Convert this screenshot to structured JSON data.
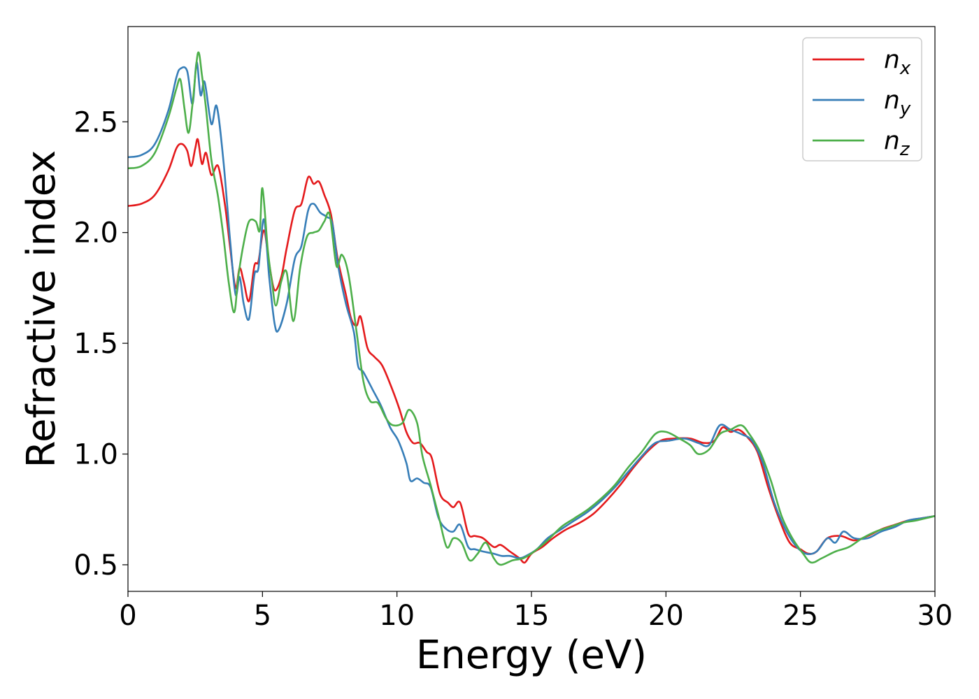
{
  "chart_data": {
    "type": "line",
    "title": "",
    "xlabel": "Energy (eV)",
    "ylabel": "Refractive index",
    "xlim": [
      0,
      30
    ],
    "ylim": [
      0.38,
      2.93
    ],
    "xticks": [
      0,
      5,
      10,
      15,
      20,
      25,
      30
    ],
    "yticks": [
      0.5,
      1.0,
      1.5,
      2.0,
      2.5
    ],
    "xtick_labels": [
      "0",
      "5",
      "10",
      "15",
      "20",
      "25",
      "30"
    ],
    "ytick_labels": [
      "0.5",
      "1.0",
      "1.5",
      "2.0",
      "2.5"
    ],
    "grid": false,
    "legend_position": "top-right",
    "series": [
      {
        "name": "n_x",
        "label_main": "n",
        "label_sub": "x",
        "color": "#e41a1c",
        "points": [
          [
            0,
            2.12
          ],
          [
            0.5,
            2.13
          ],
          [
            1.0,
            2.17
          ],
          [
            1.5,
            2.28
          ],
          [
            1.8,
            2.38
          ],
          [
            2.0,
            2.4
          ],
          [
            2.2,
            2.37
          ],
          [
            2.35,
            2.3
          ],
          [
            2.5,
            2.38
          ],
          [
            2.6,
            2.42
          ],
          [
            2.75,
            2.31
          ],
          [
            2.9,
            2.36
          ],
          [
            3.1,
            2.26
          ],
          [
            3.35,
            2.3
          ],
          [
            3.6,
            2.13
          ],
          [
            3.8,
            1.93
          ],
          [
            4.0,
            1.75
          ],
          [
            4.15,
            1.84
          ],
          [
            4.3,
            1.78
          ],
          [
            4.5,
            1.69
          ],
          [
            4.7,
            1.85
          ],
          [
            4.85,
            1.87
          ],
          [
            5.05,
            2.01
          ],
          [
            5.25,
            1.86
          ],
          [
            5.45,
            1.74
          ],
          [
            5.7,
            1.8
          ],
          [
            5.9,
            1.93
          ],
          [
            6.2,
            2.1
          ],
          [
            6.45,
            2.13
          ],
          [
            6.7,
            2.25
          ],
          [
            6.9,
            2.22
          ],
          [
            7.1,
            2.23
          ],
          [
            7.3,
            2.17
          ],
          [
            7.55,
            2.08
          ],
          [
            7.8,
            1.88
          ],
          [
            8.1,
            1.72
          ],
          [
            8.3,
            1.61
          ],
          [
            8.5,
            1.58
          ],
          [
            8.65,
            1.62
          ],
          [
            8.9,
            1.48
          ],
          [
            9.15,
            1.44
          ],
          [
            9.45,
            1.4
          ],
          [
            9.8,
            1.3
          ],
          [
            10.1,
            1.2
          ],
          [
            10.35,
            1.1
          ],
          [
            10.6,
            1.05
          ],
          [
            10.85,
            1.05
          ],
          [
            11.1,
            1.01
          ],
          [
            11.3,
            0.98
          ],
          [
            11.6,
            0.82
          ],
          [
            11.9,
            0.78
          ],
          [
            12.1,
            0.76
          ],
          [
            12.35,
            0.78
          ],
          [
            12.65,
            0.64
          ],
          [
            12.9,
            0.63
          ],
          [
            13.2,
            0.62
          ],
          [
            13.6,
            0.58
          ],
          [
            13.85,
            0.59
          ],
          [
            14.2,
            0.56
          ],
          [
            14.55,
            0.53
          ],
          [
            14.75,
            0.51
          ],
          [
            15.0,
            0.55
          ],
          [
            15.4,
            0.58
          ],
          [
            15.8,
            0.62
          ],
          [
            16.3,
            0.66
          ],
          [
            16.8,
            0.69
          ],
          [
            17.3,
            0.73
          ],
          [
            17.8,
            0.79
          ],
          [
            18.3,
            0.86
          ],
          [
            18.8,
            0.94
          ],
          [
            19.3,
            1.01
          ],
          [
            19.8,
            1.06
          ],
          [
            20.3,
            1.07
          ],
          [
            20.9,
            1.07
          ],
          [
            21.4,
            1.05
          ],
          [
            21.8,
            1.06
          ],
          [
            22.1,
            1.12
          ],
          [
            22.4,
            1.1
          ],
          [
            22.7,
            1.11
          ],
          [
            23.0,
            1.08
          ],
          [
            23.4,
            1.01
          ],
          [
            23.8,
            0.85
          ],
          [
            24.2,
            0.71
          ],
          [
            24.6,
            0.6
          ],
          [
            25.0,
            0.57
          ],
          [
            25.3,
            0.55
          ],
          [
            25.6,
            0.56
          ],
          [
            26.0,
            0.62
          ],
          [
            26.5,
            0.63
          ],
          [
            27.0,
            0.61
          ],
          [
            27.5,
            0.63
          ],
          [
            28.0,
            0.66
          ],
          [
            28.5,
            0.68
          ],
          [
            29.0,
            0.7
          ],
          [
            29.5,
            0.71
          ],
          [
            30.0,
            0.72
          ]
        ]
      },
      {
        "name": "n_y",
        "label_main": "n",
        "label_sub": "y",
        "color": "#377eb8",
        "points": [
          [
            0,
            2.34
          ],
          [
            0.5,
            2.35
          ],
          [
            1.0,
            2.4
          ],
          [
            1.5,
            2.55
          ],
          [
            1.8,
            2.7
          ],
          [
            1.95,
            2.74
          ],
          [
            2.2,
            2.73
          ],
          [
            2.4,
            2.58
          ],
          [
            2.55,
            2.77
          ],
          [
            2.7,
            2.62
          ],
          [
            2.85,
            2.68
          ],
          [
            3.1,
            2.49
          ],
          [
            3.3,
            2.57
          ],
          [
            3.55,
            2.32
          ],
          [
            3.8,
            1.96
          ],
          [
            4.0,
            1.72
          ],
          [
            4.15,
            1.8
          ],
          [
            4.3,
            1.68
          ],
          [
            4.5,
            1.61
          ],
          [
            4.7,
            1.81
          ],
          [
            4.85,
            1.84
          ],
          [
            5.05,
            2.06
          ],
          [
            5.25,
            1.8
          ],
          [
            5.45,
            1.59
          ],
          [
            5.6,
            1.56
          ],
          [
            5.9,
            1.68
          ],
          [
            6.2,
            1.88
          ],
          [
            6.45,
            1.94
          ],
          [
            6.7,
            2.1
          ],
          [
            6.9,
            2.13
          ],
          [
            7.15,
            2.09
          ],
          [
            7.4,
            2.07
          ],
          [
            7.6,
            2.04
          ],
          [
            7.8,
            1.86
          ],
          [
            8.1,
            1.68
          ],
          [
            8.4,
            1.55
          ],
          [
            8.55,
            1.4
          ],
          [
            8.75,
            1.37
          ],
          [
            9.1,
            1.29
          ],
          [
            9.4,
            1.22
          ],
          [
            9.75,
            1.12
          ],
          [
            10.05,
            1.06
          ],
          [
            10.35,
            0.96
          ],
          [
            10.5,
            0.88
          ],
          [
            10.75,
            0.89
          ],
          [
            11.0,
            0.87
          ],
          [
            11.25,
            0.85
          ],
          [
            11.55,
            0.71
          ],
          [
            11.85,
            0.66
          ],
          [
            12.1,
            0.65
          ],
          [
            12.35,
            0.68
          ],
          [
            12.65,
            0.58
          ],
          [
            12.9,
            0.57
          ],
          [
            13.2,
            0.56
          ],
          [
            13.6,
            0.55
          ],
          [
            13.9,
            0.54
          ],
          [
            14.2,
            0.54
          ],
          [
            14.55,
            0.53
          ],
          [
            14.8,
            0.54
          ],
          [
            15.2,
            0.57
          ],
          [
            15.6,
            0.62
          ],
          [
            16.1,
            0.66
          ],
          [
            16.6,
            0.7
          ],
          [
            17.1,
            0.74
          ],
          [
            17.6,
            0.79
          ],
          [
            18.1,
            0.85
          ],
          [
            18.6,
            0.92
          ],
          [
            19.1,
            0.99
          ],
          [
            19.6,
            1.05
          ],
          [
            20.1,
            1.06
          ],
          [
            20.7,
            1.07
          ],
          [
            21.2,
            1.05
          ],
          [
            21.6,
            1.04
          ],
          [
            22.0,
            1.13
          ],
          [
            22.4,
            1.11
          ],
          [
            22.8,
            1.09
          ],
          [
            23.2,
            1.06
          ],
          [
            23.6,
            0.96
          ],
          [
            24.0,
            0.79
          ],
          [
            24.4,
            0.67
          ],
          [
            24.8,
            0.59
          ],
          [
            25.2,
            0.55
          ],
          [
            25.6,
            0.56
          ],
          [
            26.0,
            0.62
          ],
          [
            26.3,
            0.6
          ],
          [
            26.6,
            0.65
          ],
          [
            27.0,
            0.62
          ],
          [
            27.5,
            0.62
          ],
          [
            28.0,
            0.65
          ],
          [
            28.5,
            0.67
          ],
          [
            29.0,
            0.7
          ],
          [
            29.5,
            0.71
          ],
          [
            30.0,
            0.72
          ]
        ]
      },
      {
        "name": "n_z",
        "label_main": "n",
        "label_sub": "z",
        "color": "#4daf4a",
        "points": [
          [
            0,
            2.29
          ],
          [
            0.5,
            2.3
          ],
          [
            1.0,
            2.36
          ],
          [
            1.5,
            2.52
          ],
          [
            1.8,
            2.65
          ],
          [
            1.95,
            2.69
          ],
          [
            2.1,
            2.56
          ],
          [
            2.25,
            2.45
          ],
          [
            2.4,
            2.58
          ],
          [
            2.6,
            2.81
          ],
          [
            2.75,
            2.71
          ],
          [
            2.9,
            2.56
          ],
          [
            3.1,
            2.33
          ],
          [
            3.35,
            2.16
          ],
          [
            3.55,
            1.98
          ],
          [
            3.75,
            1.77
          ],
          [
            3.95,
            1.64
          ],
          [
            4.1,
            1.8
          ],
          [
            4.3,
            1.95
          ],
          [
            4.5,
            2.05
          ],
          [
            4.75,
            2.05
          ],
          [
            4.9,
            2.01
          ],
          [
            5.0,
            2.2
          ],
          [
            5.2,
            1.92
          ],
          [
            5.35,
            1.78
          ],
          [
            5.5,
            1.67
          ],
          [
            5.7,
            1.78
          ],
          [
            5.9,
            1.82
          ],
          [
            6.15,
            1.6
          ],
          [
            6.4,
            1.84
          ],
          [
            6.65,
            1.98
          ],
          [
            6.9,
            2.0
          ],
          [
            7.1,
            2.01
          ],
          [
            7.3,
            2.05
          ],
          [
            7.5,
            2.08
          ],
          [
            7.75,
            1.85
          ],
          [
            7.95,
            1.9
          ],
          [
            8.2,
            1.81
          ],
          [
            8.5,
            1.55
          ],
          [
            8.75,
            1.33
          ],
          [
            9.0,
            1.24
          ],
          [
            9.3,
            1.23
          ],
          [
            9.6,
            1.16
          ],
          [
            9.85,
            1.13
          ],
          [
            10.2,
            1.14
          ],
          [
            10.45,
            1.2
          ],
          [
            10.75,
            1.14
          ],
          [
            10.95,
            0.99
          ],
          [
            11.25,
            0.86
          ],
          [
            11.55,
            0.72
          ],
          [
            11.85,
            0.58
          ],
          [
            12.1,
            0.62
          ],
          [
            12.4,
            0.6
          ],
          [
            12.7,
            0.52
          ],
          [
            13.0,
            0.55
          ],
          [
            13.3,
            0.6
          ],
          [
            13.6,
            0.53
          ],
          [
            13.85,
            0.5
          ],
          [
            14.3,
            0.52
          ],
          [
            14.7,
            0.53
          ],
          [
            15.1,
            0.56
          ],
          [
            15.6,
            0.61
          ],
          [
            16.1,
            0.67
          ],
          [
            16.6,
            0.71
          ],
          [
            17.1,
            0.75
          ],
          [
            17.6,
            0.8
          ],
          [
            18.1,
            0.86
          ],
          [
            18.6,
            0.94
          ],
          [
            19.1,
            1.01
          ],
          [
            19.6,
            1.09
          ],
          [
            20.0,
            1.1
          ],
          [
            20.5,
            1.07
          ],
          [
            20.9,
            1.04
          ],
          [
            21.2,
            1.0
          ],
          [
            21.6,
            1.02
          ],
          [
            22.0,
            1.09
          ],
          [
            22.4,
            1.11
          ],
          [
            22.8,
            1.13
          ],
          [
            23.1,
            1.09
          ],
          [
            23.5,
            1.01
          ],
          [
            23.9,
            0.88
          ],
          [
            24.3,
            0.72
          ],
          [
            24.7,
            0.62
          ],
          [
            25.1,
            0.55
          ],
          [
            25.4,
            0.51
          ],
          [
            25.8,
            0.53
          ],
          [
            26.3,
            0.56
          ],
          [
            26.8,
            0.58
          ],
          [
            27.3,
            0.62
          ],
          [
            27.8,
            0.65
          ],
          [
            28.3,
            0.67
          ],
          [
            28.8,
            0.69
          ],
          [
            29.3,
            0.7
          ],
          [
            30.0,
            0.72
          ]
        ]
      }
    ]
  }
}
